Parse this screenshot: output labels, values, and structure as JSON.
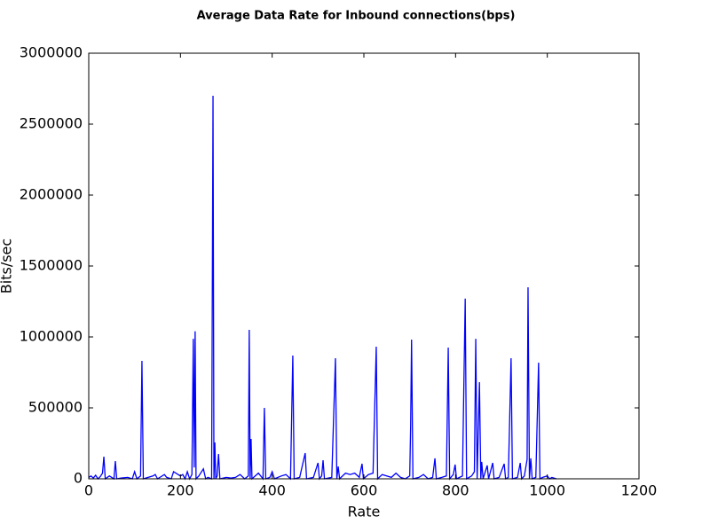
{
  "chart_data": {
    "type": "line",
    "title": "Average Data Rate for Inbound connections(bps)",
    "xlabel": "Rate",
    "ylabel": "Bits/sec",
    "color": "#0000ff",
    "x": [
      0,
      5,
      10,
      15,
      20,
      25,
      30,
      33,
      36,
      45,
      55,
      58,
      61,
      70,
      85,
      95,
      100,
      105,
      113,
      116,
      119,
      140,
      145,
      150,
      165,
      170,
      180,
      185,
      200,
      205,
      210,
      215,
      220,
      225,
      228,
      230,
      232,
      234,
      240,
      250,
      255,
      260,
      268,
      271,
      273,
      275,
      277,
      280,
      283,
      286,
      300,
      310,
      320,
      330,
      340,
      348,
      350,
      352,
      354,
      356,
      370,
      380,
      383,
      386,
      395,
      400,
      405,
      420,
      430,
      440,
      445,
      448,
      460,
      472,
      475,
      490,
      500,
      503,
      508,
      511,
      514,
      530,
      538,
      541,
      544,
      547,
      560,
      570,
      580,
      590,
      596,
      599,
      610,
      620,
      627,
      630,
      640,
      660,
      670,
      680,
      690,
      700,
      702,
      704,
      707,
      720,
      730,
      740,
      750,
      755,
      758,
      770,
      780,
      784,
      787,
      795,
      799,
      802,
      815,
      821,
      824,
      835,
      841,
      844,
      847,
      852,
      855,
      857,
      860,
      869,
      872,
      881,
      884,
      895,
      906,
      909,
      915,
      921,
      924,
      935,
      941,
      944,
      950,
      956,
      958,
      961,
      964,
      967,
      975,
      981,
      984,
      990,
      1000,
      1005,
      1010,
      1015,
      1020
    ],
    "values": [
      10000,
      20000,
      5000,
      25000,
      0,
      15000,
      40000,
      156000,
      0,
      20000,
      0,
      125000,
      0,
      5000,
      10000,
      0,
      50000,
      0,
      20000,
      831000,
      0,
      20000,
      30000,
      0,
      30000,
      10000,
      0,
      50000,
      20000,
      30000,
      0,
      50000,
      0,
      30000,
      987000,
      80000,
      1040000,
      0,
      20000,
      70000,
      0,
      10000,
      0,
      2700000,
      0,
      256000,
      0,
      20000,
      175000,
      0,
      10000,
      5000,
      10000,
      30000,
      0,
      20000,
      1050000,
      0,
      281000,
      0,
      40000,
      0,
      500000,
      0,
      10000,
      50000,
      0,
      20000,
      30000,
      0,
      869000,
      0,
      10000,
      181000,
      0,
      10000,
      112000,
      0,
      20000,
      131000,
      0,
      10000,
      850000,
      0,
      87000,
      0,
      40000,
      30000,
      40000,
      10000,
      106000,
      0,
      30000,
      40000,
      931000,
      0,
      30000,
      10000,
      40000,
      10000,
      0,
      20000,
      375000,
      981000,
      0,
      10000,
      30000,
      0,
      10000,
      144000,
      0,
      10000,
      20000,
      925000,
      0,
      30000,
      100000,
      0,
      20000,
      1270000,
      0,
      20000,
      50000,
      987000,
      0,
      681000,
      0,
      119000,
      0,
      94000,
      0,
      112000,
      0,
      10000,
      106000,
      0,
      10000,
      850000,
      0,
      10000,
      112000,
      0,
      20000,
      137000,
      1350000,
      0,
      144000,
      0,
      10000,
      819000,
      0,
      10000,
      20000,
      0,
      10000,
      5000,
      0
    ],
    "xlim": [
      0,
      1200
    ],
    "xticks": [
      0,
      200,
      400,
      600,
      800,
      1000,
      1200
    ],
    "ylim": [
      0,
      3000000
    ],
    "yticks": [
      0,
      500000,
      1000000,
      1500000,
      2000000,
      2500000,
      3000000
    ],
    "grid": false
  }
}
